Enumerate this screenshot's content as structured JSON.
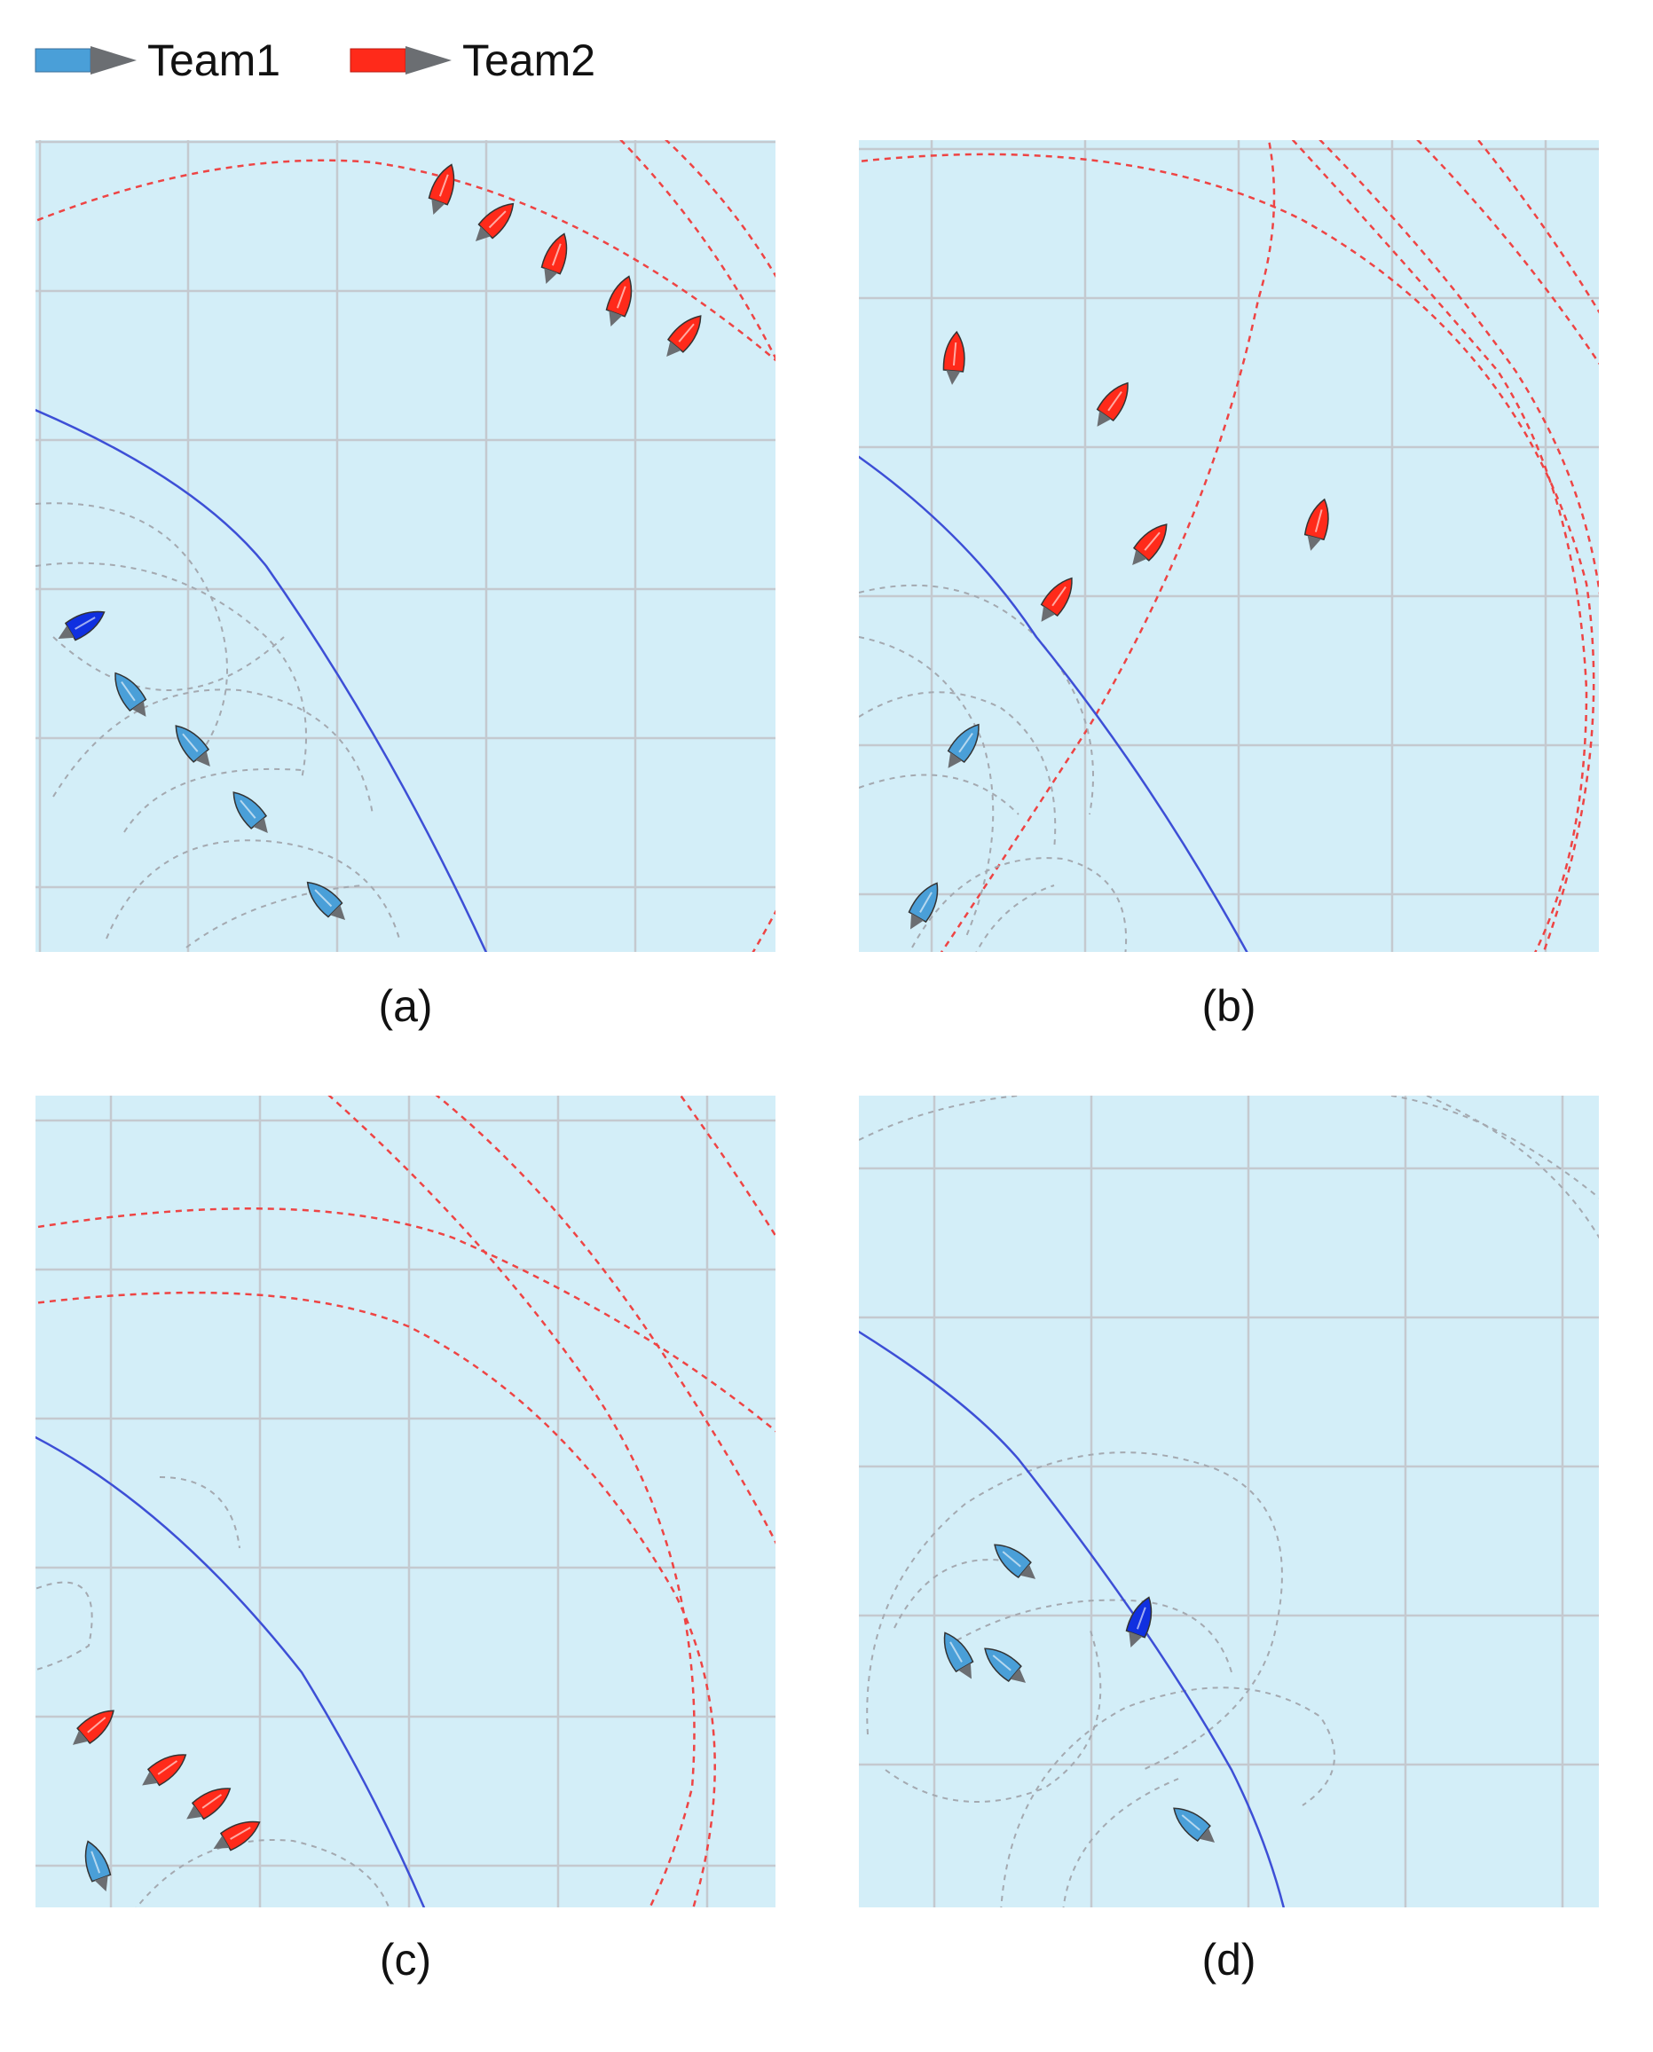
{
  "legend": {
    "team1": {
      "label": "Team1",
      "color": "#4a9fd8"
    },
    "team2": {
      "label": "Team2",
      "color": "#ff2a1a"
    },
    "arrow_color": "#6b6e72"
  },
  "colors": {
    "water": "#d3eef8",
    "grid": "#c4c9cf",
    "team2_path": "#ee4444",
    "team1_path": "#a4a9b0",
    "boundary": "#3d4fd6",
    "team1_leader": "#1030e0"
  },
  "panels": [
    {
      "id": "a",
      "caption": "(a)"
    },
    {
      "id": "b",
      "caption": "(b)"
    },
    {
      "id": "c",
      "caption": "(c)"
    },
    {
      "id": "d",
      "caption": "(d)"
    }
  ]
}
